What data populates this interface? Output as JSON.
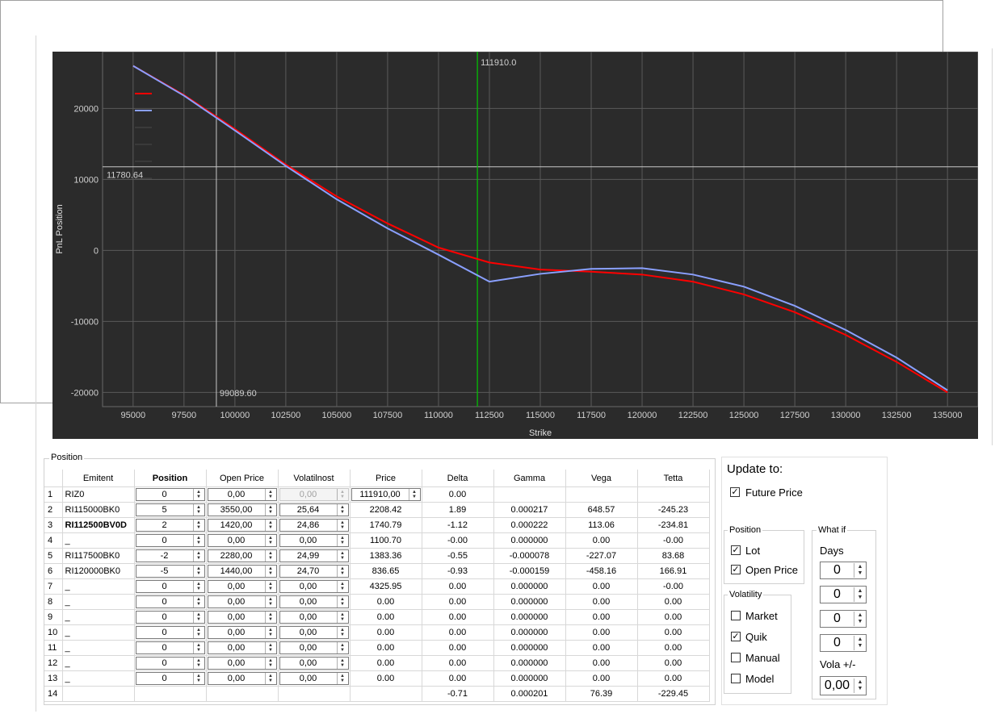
{
  "chart_data": {
    "type": "line",
    "title": "",
    "xlabel": "Strike",
    "ylabel": "PnL Position",
    "xlim": [
      93500,
      136500
    ],
    "ylim": [
      -22000,
      28000
    ],
    "xticks": [
      95000,
      97500,
      100000,
      102500,
      105000,
      107500,
      110000,
      112500,
      115000,
      117500,
      120000,
      122500,
      125000,
      127500,
      130000,
      132500,
      135000
    ],
    "yticks": [
      20000,
      10000,
      0,
      -10000,
      -20000
    ],
    "grid": true,
    "series": [
      {
        "color": "#ff0000",
        "x": [
          95000,
          97500,
          100000,
          102500,
          105000,
          107500,
          110000,
          112500,
          115000,
          117500,
          120000,
          122500,
          125000,
          127500,
          130000,
          132500,
          135000
        ],
        "values": [
          26000,
          21900,
          17100,
          12100,
          7600,
          3800,
          400,
          -1700,
          -2700,
          -3000,
          -3400,
          -4400,
          -6200,
          -8700,
          -11900,
          -15700,
          -20000
        ]
      },
      {
        "color": "#8aa0ff",
        "x": [
          95000,
          97500,
          100000,
          102500,
          105000,
          107500,
          110000,
          112500,
          115000,
          117500,
          120000,
          122500,
          125000,
          127500,
          130000,
          132500,
          135000
        ],
        "values": [
          26000,
          21800,
          16900,
          11900,
          7200,
          3100,
          -600,
          -4400,
          -3300,
          -2600,
          -2500,
          -3400,
          -5100,
          -7800,
          -11200,
          -15100,
          -19700
        ]
      }
    ],
    "annotations": {
      "vertical_line": {
        "x": 111910,
        "label": "111910.0",
        "color": "#00c800"
      },
      "horizontal_line": {
        "y": 11780.64,
        "label": "11780.64",
        "color": "#c8c8c8"
      },
      "vertical_marker": {
        "x": 99089.6,
        "label": "99089.60",
        "color": "#c8c8c8"
      }
    }
  },
  "position_group": {
    "title": "Position"
  },
  "table": {
    "headers": [
      "",
      "Emitent",
      "Position",
      "Open Price",
      "Volatilnost",
      "Price",
      "Delta",
      "Gamma",
      "Vega",
      "Tetta"
    ],
    "rows": [
      {
        "num": "1",
        "emitent": "RIZ0",
        "position": "0",
        "open_price": "0,00",
        "vol": "0,00",
        "price": "111910,00",
        "delta": "0.00",
        "gamma": "",
        "vega": "",
        "tetta": "",
        "vol_disabled": true,
        "price_spin": true
      },
      {
        "num": "2",
        "emitent": "RI115000BK0",
        "position": "5",
        "open_price": "3550,00",
        "vol": "25,64",
        "price": "2208.42",
        "delta": "1.89",
        "gamma": "0.000217",
        "vega": "648.57",
        "tetta": "-245.23"
      },
      {
        "num": "3",
        "emitent": "RI112500BV0D",
        "position": "2",
        "open_price": "1420,00",
        "vol": "24,86",
        "price": "1740.79",
        "delta": "-1.12",
        "gamma": "0.000222",
        "vega": "113.06",
        "tetta": "-234.81"
      },
      {
        "num": "4",
        "emitent": "_",
        "position": "0",
        "open_price": "0,00",
        "vol": "0,00",
        "price": "1100.70",
        "delta": "-0.00",
        "gamma": "0.000000",
        "vega": "0.00",
        "tetta": "-0.00"
      },
      {
        "num": "5",
        "emitent": "RI117500BK0",
        "position": "-2",
        "open_price": "2280,00",
        "vol": "24,99",
        "price": "1383.36",
        "delta": "-0.55",
        "gamma": "-0.000078",
        "vega": "-227.07",
        "tetta": "83.68"
      },
      {
        "num": "6",
        "emitent": "RI120000BK0",
        "position": "-5",
        "open_price": "1440,00",
        "vol": "24,70",
        "price": "836.65",
        "delta": "-0.93",
        "gamma": "-0.000159",
        "vega": "-458.16",
        "tetta": "166.91"
      },
      {
        "num": "7",
        "emitent": "_",
        "position": "0",
        "open_price": "0,00",
        "vol": "0,00",
        "price": "4325.95",
        "delta": "0.00",
        "gamma": "0.000000",
        "vega": "0.00",
        "tetta": "-0.00"
      },
      {
        "num": "8",
        "emitent": "_",
        "position": "0",
        "open_price": "0,00",
        "vol": "0,00",
        "price": "0.00",
        "delta": "0.00",
        "gamma": "0.000000",
        "vega": "0.00",
        "tetta": "0.00"
      },
      {
        "num": "9",
        "emitent": "_",
        "position": "0",
        "open_price": "0,00",
        "vol": "0,00",
        "price": "0.00",
        "delta": "0.00",
        "gamma": "0.000000",
        "vega": "0.00",
        "tetta": "0.00"
      },
      {
        "num": "10",
        "emitent": "_",
        "position": "0",
        "open_price": "0,00",
        "vol": "0,00",
        "price": "0.00",
        "delta": "0.00",
        "gamma": "0.000000",
        "vega": "0.00",
        "tetta": "0.00"
      },
      {
        "num": "11",
        "emitent": "_",
        "position": "0",
        "open_price": "0,00",
        "vol": "0,00",
        "price": "0.00",
        "delta": "0.00",
        "gamma": "0.000000",
        "vega": "0.00",
        "tetta": "0.00"
      },
      {
        "num": "12",
        "emitent": "_",
        "position": "0",
        "open_price": "0,00",
        "vol": "0,00",
        "price": "0.00",
        "delta": "0.00",
        "gamma": "0.000000",
        "vega": "0.00",
        "tetta": "0.00"
      },
      {
        "num": "13",
        "emitent": "_",
        "position": "0",
        "open_price": "0,00",
        "vol": "0,00",
        "price": "0.00",
        "delta": "0.00",
        "gamma": "0.000000",
        "vega": "0.00",
        "tetta": "0.00"
      }
    ],
    "totals": {
      "num": "14",
      "delta": "-0.71",
      "gamma": "0.000201",
      "vega": "76.39",
      "tetta": "-229.45"
    }
  },
  "update_to": {
    "title": "Update to:",
    "future_price": {
      "label": "Future Price",
      "checked": true
    }
  },
  "position_box": {
    "title": "Position",
    "lot": {
      "label": "Lot",
      "checked": true
    },
    "open_price": {
      "label": "Open Price",
      "checked": true
    }
  },
  "volatility_box": {
    "title": "Volatility",
    "market": {
      "label": "Market",
      "checked": false
    },
    "quik": {
      "label": "Quik",
      "checked": true
    },
    "manual": {
      "label": "Manual",
      "checked": false
    },
    "model": {
      "label": "Model",
      "checked": false
    }
  },
  "what_if": {
    "title": "What if",
    "days_label": "Days",
    "days": [
      "0",
      "0",
      "0",
      "0"
    ],
    "vola_label": "Vola +/-",
    "vola": "0,00"
  },
  "icons": {
    "check": "✓",
    "spin_up": "▲",
    "spin_down": "▼"
  }
}
